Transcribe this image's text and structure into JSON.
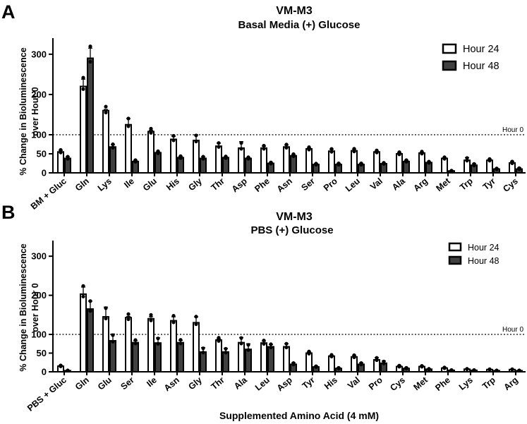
{
  "figure": {
    "xlabel": "Supplemented Amino Acid (4 mM)"
  },
  "chart_data": [
    {
      "type": "bar",
      "panel_label": "A",
      "title": "VM-M3",
      "subtitle": "Basal Media (+) Glucose",
      "ylabel_line1": "% Change in Bioluminescence",
      "ylabel_line2": "over Hour 0",
      "ylim": [
        0,
        340
      ],
      "yticks": [
        0,
        50,
        100,
        200,
        300
      ],
      "reference": {
        "value": 100,
        "label": "Hour 0"
      },
      "legend_position": "top-right",
      "categories": [
        "BM + Gluc",
        "Gln",
        "Lys",
        "Ile",
        "Glu",
        "His",
        "Gly",
        "Thr",
        "Asp",
        "Phe",
        "Asn",
        "Ser",
        "Pro",
        "Leu",
        "Val",
        "Ala",
        "Arg",
        "Met",
        "Trp",
        "Tyr",
        "Cys"
      ],
      "series": [
        {
          "name": "Hour 24",
          "color": "#ffffff",
          "values": [
            55,
            220,
            160,
            125,
            108,
            88,
            85,
            70,
            65,
            65,
            68,
            63,
            57,
            58,
            55,
            50,
            52,
            38,
            33,
            33,
            26
          ],
          "errors": [
            4,
            18,
            3,
            15,
            3,
            8,
            15,
            8,
            17,
            5,
            5,
            2,
            5,
            4,
            2,
            3,
            2,
            2,
            7,
            3,
            4
          ]
        },
        {
          "name": "Hour 48",
          "color": "#404040",
          "values": [
            38,
            290,
            68,
            30,
            53,
            40,
            38,
            40,
            38,
            25,
            45,
            22,
            22,
            22,
            24,
            30,
            27,
            5,
            20,
            10,
            10
          ],
          "errors": [
            4,
            25,
            6,
            3,
            2,
            3,
            4,
            2,
            2,
            2,
            3,
            2,
            3,
            3,
            2,
            3,
            2,
            1,
            4,
            2,
            3
          ]
        }
      ]
    },
    {
      "type": "bar",
      "panel_label": "B",
      "title": "VM-M3",
      "subtitle": "PBS (+) Glucose",
      "ylabel_line1": "% Change in Bioluminescence",
      "ylabel_line2": "over Hour 0",
      "ylim": [
        0,
        340
      ],
      "yticks": [
        0,
        50,
        100,
        200,
        300
      ],
      "reference": {
        "value": 100,
        "label": "Hour 0"
      },
      "legend_position": "top-right",
      "categories": [
        "PBS + Gluc",
        "Gln",
        "Glu",
        "Ser",
        "Ile",
        "Asn",
        "Gly",
        "Thr",
        "Ala",
        "Leu",
        "Asp",
        "Tyr",
        "His",
        "Val",
        "Pro",
        "Cys",
        "Met",
        "Phe",
        "Lys",
        "Trp",
        "Arg"
      ],
      "series": [
        {
          "name": "Hour 24",
          "color": "#ffffff",
          "values": [
            15,
            203,
            145,
            143,
            140,
            135,
            130,
            85,
            78,
            77,
            67,
            50,
            42,
            40,
            32,
            14,
            14,
            10,
            7,
            6,
            6
          ],
          "errors": [
            2,
            18,
            25,
            3,
            5,
            10,
            15,
            3,
            14,
            5,
            8,
            3,
            2,
            4,
            6,
            3,
            2,
            2,
            1,
            1,
            1
          ]
        },
        {
          "name": "Hour 48",
          "color": "#404040",
          "values": [
            3,
            165,
            83,
            78,
            77,
            78,
            53,
            53,
            60,
            67,
            20,
            13,
            9,
            20,
            23,
            9,
            7,
            4,
            4,
            3,
            3
          ],
          "errors": [
            1,
            20,
            18,
            5,
            14,
            6,
            12,
            10,
            15,
            6,
            4,
            2,
            2,
            4,
            6,
            2,
            1,
            1,
            1,
            1,
            1
          ]
        }
      ]
    }
  ]
}
